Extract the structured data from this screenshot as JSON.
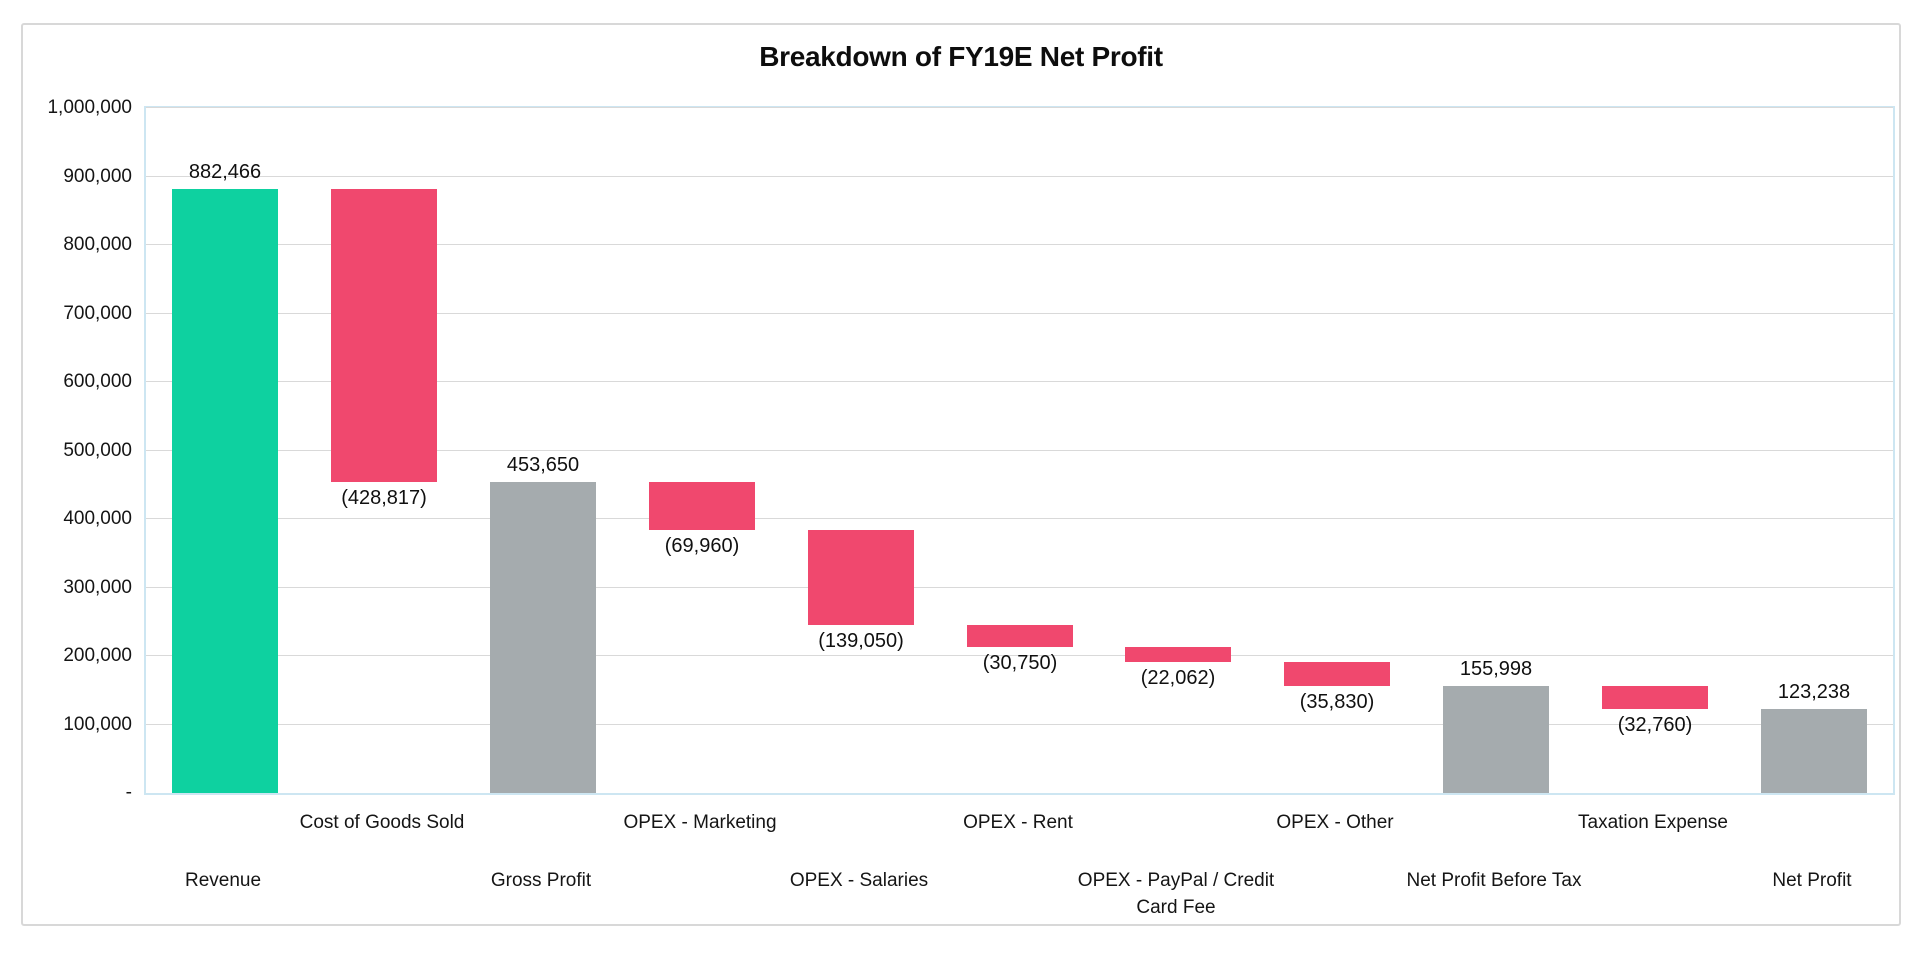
{
  "chart": {
    "colors": {
      "increase": "#0ed1a0",
      "decrease": "#f0486e",
      "total": "#a5abae",
      "gridline": "#d9d9d9",
      "plot_border": "#cde6f2",
      "title_text": "#0d0d0d"
    }
  },
  "chart_data": {
    "type": "bar",
    "subtype": "waterfall",
    "title": "Breakdown of FY19E Net Profit",
    "xlabel": "",
    "ylabel": "",
    "ylim": [
      0,
      1000000
    ],
    "ytick_interval": 100000,
    "grid": true,
    "legend": "none",
    "yticks": [
      "-",
      "100,000",
      "200,000",
      "300,000",
      "400,000",
      "500,000",
      "600,000",
      "700,000",
      "800,000",
      "900,000",
      "1,000,000"
    ],
    "categories": [
      "Revenue",
      "Cost of Goods Sold",
      "Gross Profit",
      "OPEX - Marketing",
      "OPEX - Salaries",
      "OPEX - Rent",
      "OPEX - PayPal / Credit Card Fee",
      "OPEX - Other",
      "Net Profit Before Tax",
      "Taxation Expense",
      "Net Profit"
    ],
    "items": [
      {
        "label": "Revenue",
        "value": 882466,
        "display": "882,466",
        "kind": "increase",
        "start": 0,
        "end": 882466
      },
      {
        "label": "Cost of Goods Sold",
        "value": -428817,
        "display": "(428,817)",
        "kind": "decrease",
        "start": 882466,
        "end": 453649
      },
      {
        "label": "Gross Profit",
        "value": 453650,
        "display": "453,650",
        "kind": "total",
        "start": 0,
        "end": 453650
      },
      {
        "label": "OPEX - Marketing",
        "value": -69960,
        "display": "(69,960)",
        "kind": "decrease",
        "start": 453650,
        "end": 383690
      },
      {
        "label": "OPEX - Salaries",
        "value": -139050,
        "display": "(139,050)",
        "kind": "decrease",
        "start": 383690,
        "end": 244640
      },
      {
        "label": "OPEX - Rent",
        "value": -30750,
        "display": "(30,750)",
        "kind": "decrease",
        "start": 244640,
        "end": 213890
      },
      {
        "label": "OPEX - PayPal / Credit Card Fee",
        "value": -22062,
        "display": "(22,062)",
        "kind": "decrease",
        "start": 213890,
        "end": 191828
      },
      {
        "label": "OPEX - Other",
        "value": -35830,
        "display": "(35,830)",
        "kind": "decrease",
        "start": 191828,
        "end": 155998
      },
      {
        "label": "Net Profit Before Tax",
        "value": 155998,
        "display": "155,998",
        "kind": "total",
        "start": 0,
        "end": 155998
      },
      {
        "label": "Taxation Expense",
        "value": -32760,
        "display": "(32,760)",
        "kind": "decrease",
        "start": 155998,
        "end": 123238
      },
      {
        "label": "Net Profit",
        "value": 123238,
        "display": "123,238",
        "kind": "total",
        "start": 0,
        "end": 123238
      }
    ]
  }
}
